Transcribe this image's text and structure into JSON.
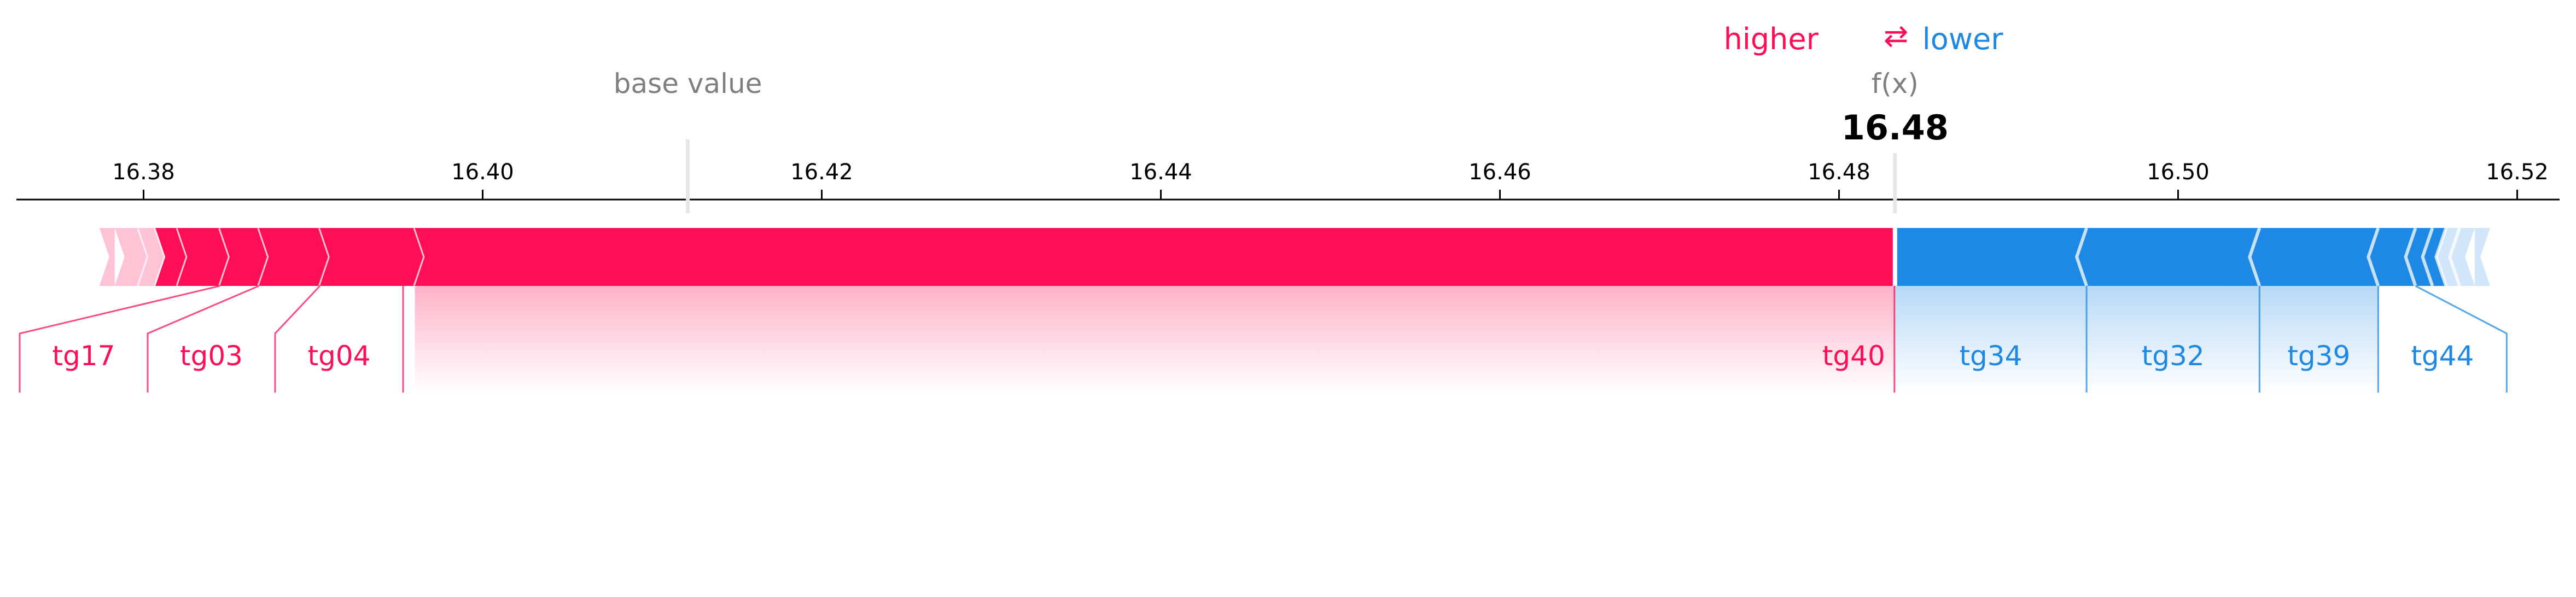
{
  "chart_data": {
    "type": "force",
    "base_value_label": "base value",
    "fx_label": "f(x)",
    "fx_value_text": "16.48",
    "fx_value": 16.4833,
    "base_value": 16.4121,
    "xlim": [
      16.3725,
      16.5225
    ],
    "ticks": [
      16.38,
      16.4,
      16.42,
      16.44,
      16.46,
      16.48,
      16.5,
      16.52
    ],
    "tick_labels": [
      "16.38",
      "16.40",
      "16.42",
      "16.44",
      "16.46",
      "16.48",
      "16.50",
      "16.52"
    ],
    "legend": {
      "higher": "higher",
      "arrow": "⇄",
      "lower": "lower"
    },
    "colors": {
      "positive": "#ff0d57",
      "negative": "#1e88e5",
      "positive_light": "#ffc3d5",
      "negative_light": "#d1e6fa",
      "base_line": "#e6e6e6"
    },
    "positive_boundaries": [
      16.3783,
      16.3797,
      16.3807,
      16.382,
      16.3845,
      16.3868,
      16.3904,
      16.396,
      16.4833
    ],
    "negative_boundaries": [
      16.4833,
      16.4946,
      16.5048,
      16.5118,
      16.514,
      16.515,
      16.5158,
      16.5166,
      16.5175
    ],
    "positive_features": [
      {
        "name": "tg17",
        "from": 16.3845,
        "to": 16.3868
      },
      {
        "name": "tg03",
        "from": 16.3868,
        "to": 16.3904
      },
      {
        "name": "tg04",
        "from": 16.3904,
        "to": 16.396
      },
      {
        "name": "tg40",
        "from": 16.396,
        "to": 16.4833
      }
    ],
    "negative_features": [
      {
        "name": "tg34",
        "from": 16.4833,
        "to": 16.4946
      },
      {
        "name": "tg32",
        "from": 16.4946,
        "to": 16.5048
      },
      {
        "name": "tg39",
        "from": 16.5048,
        "to": 16.5118
      },
      {
        "name": "tg44",
        "from": 16.5118,
        "to": 16.514
      }
    ]
  }
}
